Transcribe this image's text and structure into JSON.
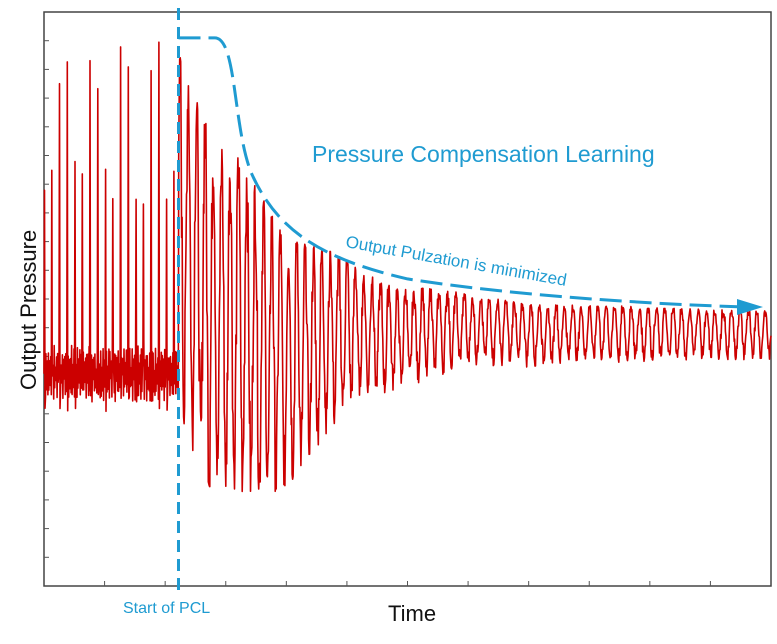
{
  "chart_data": {
    "type": "line",
    "xlabel": "Time",
    "ylabel": "Output Pressure",
    "ylim": [
      0,
      1
    ],
    "xlim": [
      0,
      100
    ],
    "grid": false,
    "legend": "none",
    "annotations": {
      "title": "Pressure Compensation Learning",
      "curve_label": "Output Pulzation is minimized",
      "marker_label": "Start of PCL",
      "marker_x": 18.5
    },
    "series": [
      {
        "values_description_only_in_script": true,
        "envelope_upper": [
          {
            "x": 0,
            "y": 0.93
          },
          {
            "x": 18,
            "y": 0.93
          },
          {
            "x": 25,
            "y": 0.76
          },
          {
            "x": 35,
            "y": 0.6
          },
          {
            "x": 50,
            "y": 0.52
          },
          {
            "x": 70,
            "y": 0.49
          },
          {
            "x": 100,
            "y": 0.48
          }
        ],
        "envelope_lower": [
          {
            "x": 0,
            "y": 0.3
          },
          {
            "x": 18,
            "y": 0.3
          },
          {
            "x": 23,
            "y": 0.17
          },
          {
            "x": 30,
            "y": 0.15
          },
          {
            "x": 45,
            "y": 0.33
          },
          {
            "x": 60,
            "y": 0.38
          },
          {
            "x": 100,
            "y": 0.39
          }
        ]
      }
    ],
    "colors": {
      "signal": "#cc0000",
      "accent": "#1f9bd1",
      "axis": "#444444"
    }
  }
}
